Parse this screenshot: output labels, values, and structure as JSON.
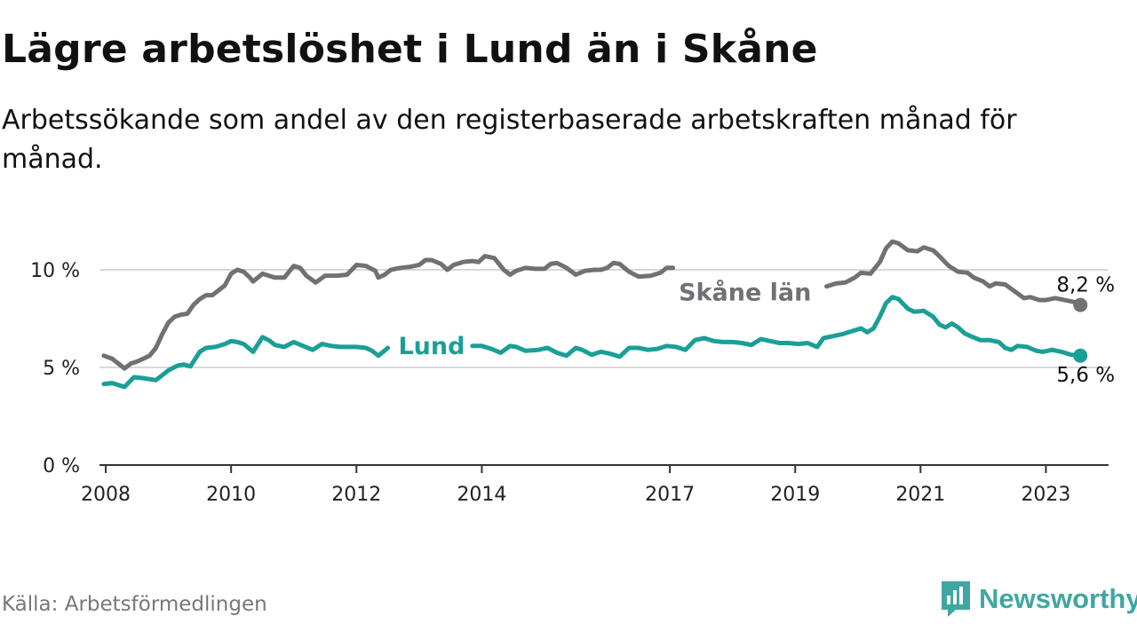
{
  "header": {
    "title": "Lägre arbetslöshet i Lund än i Skåne",
    "subtitle": "Arbetssökande som andel av den registerbaserade arbetskraften månad för månad."
  },
  "footer": {
    "source": "Källa: Arbetsförmedlingen",
    "brand": "Newsworthy"
  },
  "colors": {
    "skane": "#727075",
    "lund": "#1a9f96",
    "grid": "#d9d9d9",
    "axis": "#333333",
    "brand": "#3fa7a0"
  },
  "chart_data": {
    "type": "line",
    "title": "Lägre arbetslöshet i Lund än i Skåne",
    "xlabel": "",
    "ylabel": "",
    "xlim": [
      2007.9,
      2024.0
    ],
    "ylim": [
      0,
      11
    ],
    "x_ticks": [
      {
        "value": 2008.0,
        "label": "2008"
      },
      {
        "value": 2010.0,
        "label": "2010"
      },
      {
        "value": 2012.0,
        "label": "2012"
      },
      {
        "value": 2014.0,
        "label": "2014"
      },
      {
        "value": 2017.0,
        "label": "2017"
      },
      {
        "value": 2019.0,
        "label": "2019"
      },
      {
        "value": 2021.0,
        "label": "2021"
      },
      {
        "value": 2023.0,
        "label": "2023"
      }
    ],
    "y_ticks": [
      {
        "value": 0,
        "label": "0 %"
      },
      {
        "value": 5,
        "label": "5 %"
      },
      {
        "value": 10,
        "label": "10 %"
      }
    ],
    "series": [
      {
        "name": "Skåne län",
        "label": "Skåne län",
        "color": "#727075",
        "end_label": "8,2 %",
        "end_value": 8.2,
        "label_x": 2018.2,
        "label_gap": [
          2017.1,
          2019.4
        ],
        "points": [
          [
            2007.97,
            5.6
          ],
          [
            2008.1,
            5.45
          ],
          [
            2008.2,
            5.2
          ],
          [
            2008.3,
            4.95
          ],
          [
            2008.4,
            5.2
          ],
          [
            2008.5,
            5.3
          ],
          [
            2008.6,
            5.45
          ],
          [
            2008.7,
            5.6
          ],
          [
            2008.8,
            6.0
          ],
          [
            2008.9,
            6.7
          ],
          [
            2009.0,
            7.3
          ],
          [
            2009.1,
            7.6
          ],
          [
            2009.2,
            7.7
          ],
          [
            2009.3,
            7.75
          ],
          [
            2009.4,
            8.2
          ],
          [
            2009.5,
            8.5
          ],
          [
            2009.6,
            8.7
          ],
          [
            2009.7,
            8.7
          ],
          [
            2009.8,
            8.95
          ],
          [
            2009.9,
            9.2
          ],
          [
            2010.0,
            9.8
          ],
          [
            2010.1,
            10.0
          ],
          [
            2010.2,
            9.9
          ],
          [
            2010.3,
            9.6
          ],
          [
            2010.35,
            9.4
          ],
          [
            2010.5,
            9.8
          ],
          [
            2010.6,
            9.7
          ],
          [
            2010.7,
            9.6
          ],
          [
            2010.85,
            9.6
          ],
          [
            2011.0,
            10.2
          ],
          [
            2011.1,
            10.1
          ],
          [
            2011.2,
            9.7
          ],
          [
            2011.35,
            9.35
          ],
          [
            2011.5,
            9.7
          ],
          [
            2011.7,
            9.7
          ],
          [
            2011.85,
            9.75
          ],
          [
            2012.0,
            10.25
          ],
          [
            2012.15,
            10.2
          ],
          [
            2012.3,
            9.95
          ],
          [
            2012.35,
            9.6
          ],
          [
            2012.45,
            9.75
          ],
          [
            2012.55,
            10.0
          ],
          [
            2012.7,
            10.1
          ],
          [
            2012.85,
            10.15
          ],
          [
            2013.0,
            10.25
          ],
          [
            2013.1,
            10.5
          ],
          [
            2013.2,
            10.5
          ],
          [
            2013.35,
            10.3
          ],
          [
            2013.45,
            10.0
          ],
          [
            2013.55,
            10.25
          ],
          [
            2013.7,
            10.4
          ],
          [
            2013.85,
            10.45
          ],
          [
            2013.95,
            10.4
          ],
          [
            2014.05,
            10.7
          ],
          [
            2014.2,
            10.6
          ],
          [
            2014.35,
            10.0
          ],
          [
            2014.45,
            9.75
          ],
          [
            2014.55,
            9.95
          ],
          [
            2014.7,
            10.1
          ],
          [
            2014.85,
            10.05
          ],
          [
            2015.0,
            10.05
          ],
          [
            2015.1,
            10.3
          ],
          [
            2015.2,
            10.35
          ],
          [
            2015.35,
            10.1
          ],
          [
            2015.5,
            9.75
          ],
          [
            2015.65,
            9.95
          ],
          [
            2015.8,
            10.0
          ],
          [
            2015.9,
            10.0
          ],
          [
            2016.0,
            10.1
          ],
          [
            2016.1,
            10.35
          ],
          [
            2016.2,
            10.3
          ],
          [
            2016.35,
            9.9
          ],
          [
            2016.5,
            9.65
          ],
          [
            2016.7,
            9.7
          ],
          [
            2016.85,
            9.85
          ],
          [
            2016.95,
            10.1
          ],
          [
            2017.05,
            10.1
          ],
          [
            2019.35,
            8.85
          ],
          [
            2019.5,
            9.15
          ],
          [
            2019.65,
            9.3
          ],
          [
            2019.8,
            9.35
          ],
          [
            2019.95,
            9.6
          ],
          [
            2020.05,
            9.85
          ],
          [
            2020.2,
            9.8
          ],
          [
            2020.35,
            10.4
          ],
          [
            2020.45,
            11.1
          ],
          [
            2020.55,
            11.45
          ],
          [
            2020.65,
            11.35
          ],
          [
            2020.8,
            11.0
          ],
          [
            2020.95,
            10.95
          ],
          [
            2021.05,
            11.15
          ],
          [
            2021.2,
            11.0
          ],
          [
            2021.3,
            10.7
          ],
          [
            2021.45,
            10.2
          ],
          [
            2021.6,
            9.9
          ],
          [
            2021.75,
            9.85
          ],
          [
            2021.85,
            9.6
          ],
          [
            2022.0,
            9.4
          ],
          [
            2022.1,
            9.15
          ],
          [
            2022.2,
            9.3
          ],
          [
            2022.35,
            9.25
          ],
          [
            2022.5,
            8.9
          ],
          [
            2022.65,
            8.55
          ],
          [
            2022.75,
            8.6
          ],
          [
            2022.9,
            8.45
          ],
          [
            2023.0,
            8.45
          ],
          [
            2023.15,
            8.55
          ],
          [
            2023.3,
            8.45
          ],
          [
            2023.45,
            8.35
          ],
          [
            2023.55,
            8.2
          ]
        ]
      },
      {
        "name": "Lund",
        "label": "Lund",
        "color": "#1a9f96",
        "end_label": "5,6 %",
        "end_value": 5.6,
        "label_x": 2013.2,
        "label_gap": [
          2012.55,
          2013.8
        ],
        "points": [
          [
            2007.97,
            4.15
          ],
          [
            2008.1,
            4.2
          ],
          [
            2008.2,
            4.1
          ],
          [
            2008.3,
            4.0
          ],
          [
            2008.45,
            4.5
          ],
          [
            2008.6,
            4.45
          ],
          [
            2008.8,
            4.35
          ],
          [
            2008.9,
            4.6
          ],
          [
            2009.0,
            4.85
          ],
          [
            2009.15,
            5.1
          ],
          [
            2009.25,
            5.15
          ],
          [
            2009.35,
            5.05
          ],
          [
            2009.5,
            5.8
          ],
          [
            2009.6,
            6.0
          ],
          [
            2009.75,
            6.05
          ],
          [
            2009.9,
            6.2
          ],
          [
            2010.0,
            6.35
          ],
          [
            2010.1,
            6.3
          ],
          [
            2010.2,
            6.2
          ],
          [
            2010.35,
            5.8
          ],
          [
            2010.5,
            6.55
          ],
          [
            2010.6,
            6.4
          ],
          [
            2010.7,
            6.15
          ],
          [
            2010.85,
            6.05
          ],
          [
            2011.0,
            6.3
          ],
          [
            2011.15,
            6.1
          ],
          [
            2011.3,
            5.9
          ],
          [
            2011.45,
            6.2
          ],
          [
            2011.6,
            6.1
          ],
          [
            2011.75,
            6.05
          ],
          [
            2011.9,
            6.05
          ],
          [
            2012.0,
            6.05
          ],
          [
            2012.15,
            6.0
          ],
          [
            2012.25,
            5.85
          ],
          [
            2012.35,
            5.6
          ],
          [
            2012.5,
            6.0
          ],
          [
            2013.85,
            6.1
          ],
          [
            2014.0,
            6.1
          ],
          [
            2014.15,
            5.95
          ],
          [
            2014.3,
            5.75
          ],
          [
            2014.45,
            6.1
          ],
          [
            2014.55,
            6.05
          ],
          [
            2014.7,
            5.85
          ],
          [
            2014.9,
            5.9
          ],
          [
            2015.05,
            6.0
          ],
          [
            2015.2,
            5.75
          ],
          [
            2015.35,
            5.6
          ],
          [
            2015.5,
            6.0
          ],
          [
            2015.6,
            5.9
          ],
          [
            2015.75,
            5.65
          ],
          [
            2015.9,
            5.8
          ],
          [
            2016.05,
            5.7
          ],
          [
            2016.2,
            5.55
          ],
          [
            2016.35,
            6.0
          ],
          [
            2016.5,
            6.0
          ],
          [
            2016.65,
            5.9
          ],
          [
            2016.8,
            5.95
          ],
          [
            2016.95,
            6.1
          ],
          [
            2017.1,
            6.05
          ],
          [
            2017.25,
            5.9
          ],
          [
            2017.4,
            6.4
          ],
          [
            2017.55,
            6.5
          ],
          [
            2017.7,
            6.35
          ],
          [
            2017.85,
            6.3
          ],
          [
            2018.0,
            6.3
          ],
          [
            2018.15,
            6.25
          ],
          [
            2018.3,
            6.15
          ],
          [
            2018.45,
            6.45
          ],
          [
            2018.6,
            6.35
          ],
          [
            2018.75,
            6.25
          ],
          [
            2018.9,
            6.25
          ],
          [
            2019.05,
            6.2
          ],
          [
            2019.2,
            6.25
          ],
          [
            2019.35,
            6.05
          ],
          [
            2019.45,
            6.5
          ],
          [
            2019.6,
            6.6
          ],
          [
            2019.75,
            6.7
          ],
          [
            2019.9,
            6.85
          ],
          [
            2020.05,
            7.0
          ],
          [
            2020.15,
            6.8
          ],
          [
            2020.25,
            7.0
          ],
          [
            2020.35,
            7.6
          ],
          [
            2020.45,
            8.3
          ],
          [
            2020.55,
            8.6
          ],
          [
            2020.65,
            8.5
          ],
          [
            2020.8,
            8.0
          ],
          [
            2020.9,
            7.85
          ],
          [
            2021.05,
            7.9
          ],
          [
            2021.2,
            7.6
          ],
          [
            2021.3,
            7.2
          ],
          [
            2021.4,
            7.05
          ],
          [
            2021.5,
            7.25
          ],
          [
            2021.6,
            7.05
          ],
          [
            2021.7,
            6.75
          ],
          [
            2021.8,
            6.6
          ],
          [
            2021.95,
            6.4
          ],
          [
            2022.1,
            6.4
          ],
          [
            2022.25,
            6.3
          ],
          [
            2022.35,
            6.0
          ],
          [
            2022.45,
            5.9
          ],
          [
            2022.55,
            6.1
          ],
          [
            2022.7,
            6.05
          ],
          [
            2022.85,
            5.85
          ],
          [
            2022.95,
            5.8
          ],
          [
            2023.1,
            5.9
          ],
          [
            2023.25,
            5.8
          ],
          [
            2023.4,
            5.65
          ],
          [
            2023.55,
            5.6
          ]
        ]
      }
    ]
  }
}
